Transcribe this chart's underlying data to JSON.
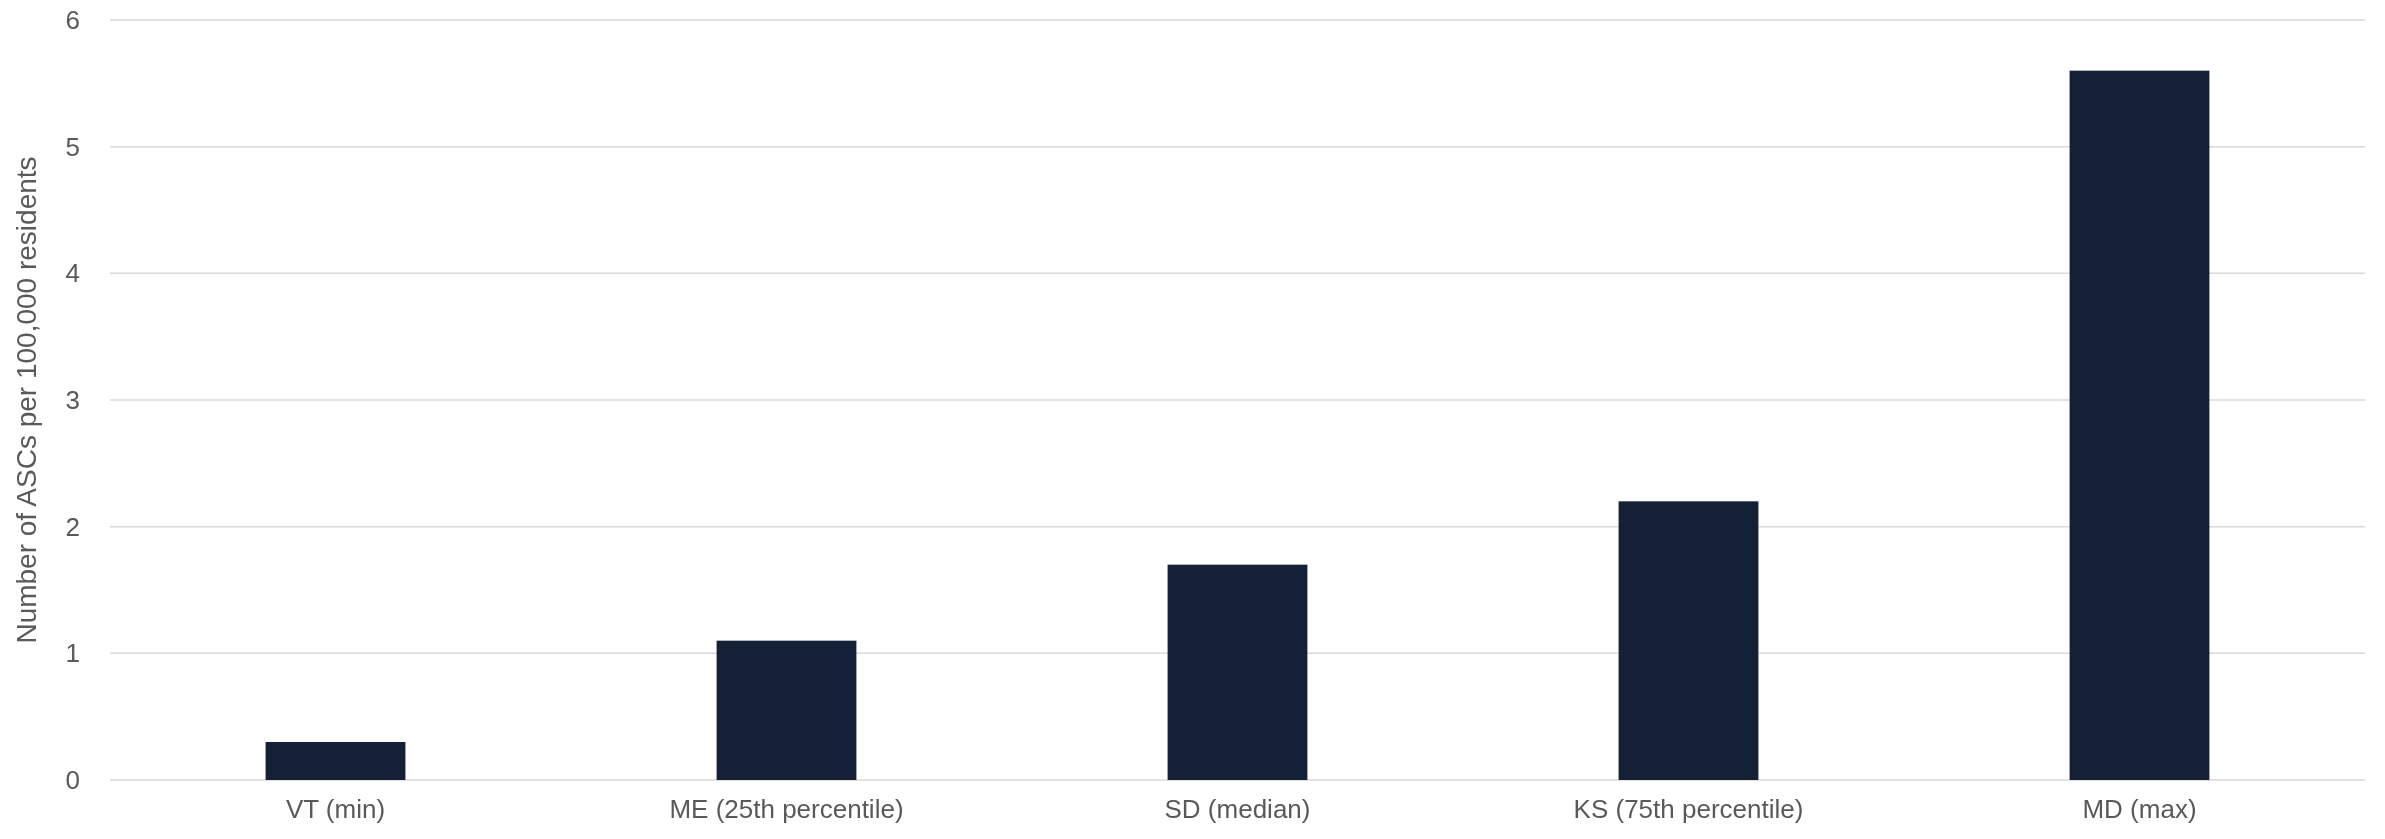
{
  "chart_data": {
    "type": "bar",
    "ylabel": "Number of ASCs per 100,000 residents",
    "categories": [
      "VT (min)",
      "ME (25th percentile)",
      "SD (median)",
      "KS (75th percentile)",
      "MD (max)"
    ],
    "values": [
      0.3,
      1.1,
      1.7,
      2.2,
      5.6
    ],
    "color": "#142036",
    "ylim": [
      0,
      6
    ],
    "yticks": [
      0,
      1,
      2,
      3,
      4,
      5,
      6
    ],
    "grid": "y"
  }
}
